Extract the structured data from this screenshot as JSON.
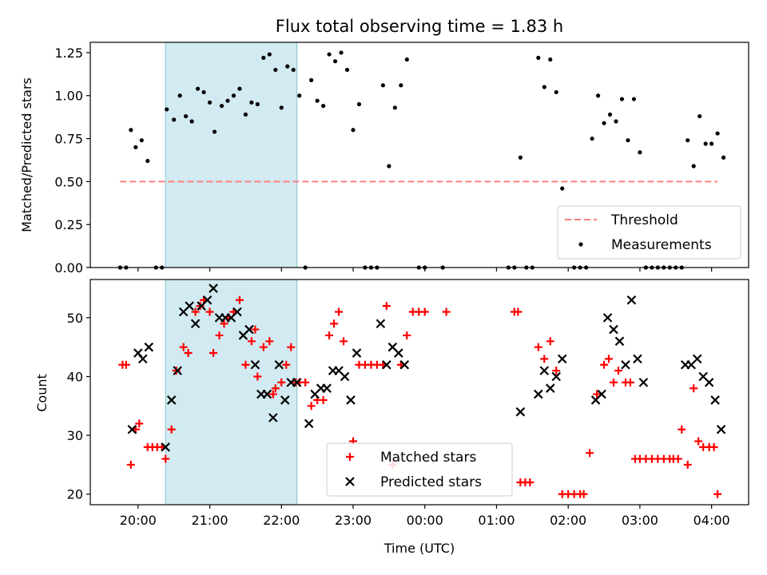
{
  "chart_data": [
    {
      "type": "scatter",
      "title": "Flux total observing time = 1.83 h",
      "xlabel": "",
      "ylabel": "Matched/Predicted stars",
      "ylim": [
        0,
        1.31
      ],
      "yticks": [
        0,
        0.25,
        0.5,
        0.75,
        1.0,
        1.25
      ],
      "ytick_labels": [
        "0.00",
        "0.25",
        "0.50",
        "0.75",
        "1.00",
        "1.25"
      ],
      "xticks": [
        "20:00",
        "21:00",
        "22:00",
        "23:00",
        "00:00",
        "01:00",
        "02:00",
        "03:00",
        "04:00"
      ],
      "xtick_labels_visible": false,
      "shaded_span": {
        "start": "20:23",
        "end": "22:13",
        "color": "#add8e6"
      },
      "threshold": {
        "name": "Threshold",
        "value": 0.5,
        "x_start": "19:45",
        "x_end": "04:05",
        "color": "#ff7f7f"
      },
      "legend": {
        "placement": "lower right",
        "entries": [
          "Threshold",
          "Measurements"
        ]
      },
      "series": [
        {
          "name": "Measurements",
          "color": "#000000",
          "points": [
            [
              "19:45",
              0.0
            ],
            [
              "19:50",
              0.0
            ],
            [
              "19:54",
              0.8
            ],
            [
              "19:58",
              0.7
            ],
            [
              "20:03",
              0.74
            ],
            [
              "20:08",
              0.62
            ],
            [
              "20:15",
              0.0
            ],
            [
              "20:20",
              0.0
            ],
            [
              "20:24",
              0.92
            ],
            [
              "20:30",
              0.86
            ],
            [
              "20:35",
              1.0
            ],
            [
              "20:40",
              0.88
            ],
            [
              "20:45",
              0.85
            ],
            [
              "20:50",
              1.04
            ],
            [
              "20:55",
              1.02
            ],
            [
              "21:00",
              0.96
            ],
            [
              "21:04",
              0.79
            ],
            [
              "21:10",
              0.94
            ],
            [
              "21:15",
              0.97
            ],
            [
              "21:20",
              1.0
            ],
            [
              "21:25",
              1.04
            ],
            [
              "21:30",
              0.89
            ],
            [
              "21:35",
              0.96
            ],
            [
              "21:40",
              0.95
            ],
            [
              "21:45",
              1.22
            ],
            [
              "21:50",
              1.24
            ],
            [
              "21:55",
              1.15
            ],
            [
              "22:00",
              0.93
            ],
            [
              "22:05",
              1.17
            ],
            [
              "22:10",
              1.15
            ],
            [
              "22:15",
              1.0
            ],
            [
              "22:20",
              0.0
            ],
            [
              "22:25",
              1.09
            ],
            [
              "22:30",
              0.97
            ],
            [
              "22:35",
              0.94
            ],
            [
              "22:40",
              1.24
            ],
            [
              "22:45",
              1.2
            ],
            [
              "22:50",
              1.25
            ],
            [
              "22:55",
              1.15
            ],
            [
              "23:00",
              0.8
            ],
            [
              "23:05",
              0.95
            ],
            [
              "23:10",
              0.0
            ],
            [
              "23:15",
              0.0
            ],
            [
              "23:20",
              0.0
            ],
            [
              "23:25",
              1.06
            ],
            [
              "23:30",
              0.59
            ],
            [
              "23:35",
              0.93
            ],
            [
              "23:40",
              1.06
            ],
            [
              "23:45",
              1.21
            ],
            [
              "23:55",
              0.0
            ],
            [
              "00:00",
              0.0
            ],
            [
              "00:15",
              0.0
            ],
            [
              "01:10",
              0.0
            ],
            [
              "01:15",
              0.0
            ],
            [
              "01:20",
              0.64
            ],
            [
              "01:25",
              0.0
            ],
            [
              "01:30",
              0.0
            ],
            [
              "01:35",
              1.22
            ],
            [
              "01:40",
              1.05
            ],
            [
              "01:45",
              1.21
            ],
            [
              "01:50",
              1.02
            ],
            [
              "01:55",
              0.46
            ],
            [
              "02:05",
              0.0
            ],
            [
              "02:10",
              0.0
            ],
            [
              "02:15",
              0.0
            ],
            [
              "02:20",
              0.75
            ],
            [
              "02:25",
              1.0
            ],
            [
              "02:30",
              0.84
            ],
            [
              "02:35",
              0.89
            ],
            [
              "02:40",
              0.85
            ],
            [
              "02:45",
              0.98
            ],
            [
              "02:50",
              0.74
            ],
            [
              "02:55",
              0.98
            ],
            [
              "03:00",
              0.67
            ],
            [
              "03:05",
              0.0
            ],
            [
              "03:10",
              0.0
            ],
            [
              "03:15",
              0.0
            ],
            [
              "03:20",
              0.0
            ],
            [
              "03:25",
              0.0
            ],
            [
              "03:30",
              0.0
            ],
            [
              "03:35",
              0.0
            ],
            [
              "03:40",
              0.74
            ],
            [
              "03:45",
              0.59
            ],
            [
              "03:50",
              0.88
            ],
            [
              "03:55",
              0.72
            ],
            [
              "04:00",
              0.72
            ],
            [
              "04:05",
              0.78
            ],
            [
              "04:10",
              0.64
            ]
          ]
        }
      ]
    },
    {
      "type": "scatter",
      "title": "",
      "xlabel": "Time (UTC)",
      "ylabel": "Count",
      "ylim": [
        18.2,
        56.5
      ],
      "yticks": [
        20,
        30,
        40,
        50
      ],
      "ytick_labels": [
        "20",
        "30",
        "40",
        "50"
      ],
      "xticks": [
        "20:00",
        "21:00",
        "22:00",
        "23:00",
        "00:00",
        "01:00",
        "02:00",
        "03:00",
        "04:00"
      ],
      "xtick_labels": [
        "20:00",
        "21:00",
        "22:00",
        "23:00",
        "00:00",
        "01:00",
        "02:00",
        "03:00",
        "04:00"
      ],
      "shaded_span": {
        "start": "20:23",
        "end": "22:13",
        "color": "#add8e6"
      },
      "legend": {
        "placement": "lower center",
        "entries": [
          "Matched stars",
          "Predicted stars"
        ]
      },
      "series": [
        {
          "name": "Matched stars",
          "marker": "+",
          "color": "#ff0000",
          "points": [
            [
              "19:47",
              42
            ],
            [
              "19:50",
              42
            ],
            [
              "19:54",
              25
            ],
            [
              "19:58",
              31
            ],
            [
              "20:01",
              32
            ],
            [
              "20:08",
              28
            ],
            [
              "20:12",
              28
            ],
            [
              "20:16",
              28
            ],
            [
              "20:20",
              28
            ],
            [
              "20:23",
              26
            ],
            [
              "20:28",
              31
            ],
            [
              "20:32",
              41
            ],
            [
              "20:38",
              45
            ],
            [
              "20:42",
              44
            ],
            [
              "20:48",
              51
            ],
            [
              "20:52",
              52
            ],
            [
              "20:55",
              53
            ],
            [
              "21:00",
              51
            ],
            [
              "21:03",
              44
            ],
            [
              "21:08",
              47
            ],
            [
              "21:12",
              49
            ],
            [
              "21:15",
              50
            ],
            [
              "21:20",
              51
            ],
            [
              "21:25",
              53
            ],
            [
              "21:30",
              42
            ],
            [
              "21:35",
              46
            ],
            [
              "21:38",
              48
            ],
            [
              "21:40",
              40
            ],
            [
              "21:45",
              45
            ],
            [
              "21:50",
              46
            ],
            [
              "21:53",
              37
            ],
            [
              "21:55",
              38
            ],
            [
              "22:00",
              39
            ],
            [
              "22:04",
              42
            ],
            [
              "22:08",
              45
            ],
            [
              "22:12",
              39
            ],
            [
              "22:15",
              39
            ],
            [
              "22:20",
              39
            ],
            [
              "22:25",
              35
            ],
            [
              "22:30",
              36
            ],
            [
              "22:35",
              36
            ],
            [
              "22:40",
              47
            ],
            [
              "22:44",
              49
            ],
            [
              "22:48",
              51
            ],
            [
              "22:52",
              46
            ],
            [
              "23:00",
              29
            ],
            [
              "23:05",
              42
            ],
            [
              "23:10",
              42
            ],
            [
              "23:15",
              42
            ],
            [
              "23:20",
              42
            ],
            [
              "23:25",
              42
            ],
            [
              "23:28",
              52
            ],
            [
              "23:33",
              25
            ],
            [
              "23:40",
              42
            ],
            [
              "23:45",
              47
            ],
            [
              "23:50",
              51
            ],
            [
              "23:55",
              51
            ],
            [
              "00:00",
              51
            ],
            [
              "00:18",
              51
            ],
            [
              "01:15",
              51
            ],
            [
              "01:18",
              51
            ],
            [
              "01:20",
              22
            ],
            [
              "01:24",
              22
            ],
            [
              "01:28",
              22
            ],
            [
              "01:35",
              45
            ],
            [
              "01:40",
              43
            ],
            [
              "01:45",
              46
            ],
            [
              "01:50",
              41
            ],
            [
              "01:55",
              20
            ],
            [
              "02:00",
              20
            ],
            [
              "02:05",
              20
            ],
            [
              "02:10",
              20
            ],
            [
              "02:13",
              20
            ],
            [
              "02:18",
              27
            ],
            [
              "02:24",
              37
            ],
            [
              "02:30",
              42
            ],
            [
              "02:34",
              43
            ],
            [
              "02:38",
              39
            ],
            [
              "02:42",
              41
            ],
            [
              "02:48",
              39
            ],
            [
              "02:52",
              39
            ],
            [
              "02:56",
              26
            ],
            [
              "03:00",
              26
            ],
            [
              "03:05",
              26
            ],
            [
              "03:10",
              26
            ],
            [
              "03:15",
              26
            ],
            [
              "03:20",
              26
            ],
            [
              "03:25",
              26
            ],
            [
              "03:28",
              26
            ],
            [
              "03:32",
              26
            ],
            [
              "03:35",
              31
            ],
            [
              "03:40",
              25
            ],
            [
              "03:45",
              38
            ],
            [
              "03:49",
              29
            ],
            [
              "03:53",
              28
            ],
            [
              "03:58",
              28
            ],
            [
              "04:02",
              28
            ],
            [
              "04:05",
              20
            ]
          ]
        },
        {
          "name": "Predicted stars",
          "marker": "x",
          "color": "#000000",
          "points": [
            [
              "19:55",
              31
            ],
            [
              "20:00",
              44
            ],
            [
              "20:04",
              43
            ],
            [
              "20:09",
              45
            ],
            [
              "20:23",
              28
            ],
            [
              "20:28",
              36
            ],
            [
              "20:33",
              41
            ],
            [
              "20:38",
              51
            ],
            [
              "20:43",
              52
            ],
            [
              "20:48",
              49
            ],
            [
              "20:53",
              52
            ],
            [
              "20:58",
              53
            ],
            [
              "21:03",
              55
            ],
            [
              "21:08",
              50
            ],
            [
              "21:13",
              50
            ],
            [
              "21:18",
              50
            ],
            [
              "21:23",
              51
            ],
            [
              "21:28",
              47
            ],
            [
              "21:33",
              48
            ],
            [
              "21:38",
              42
            ],
            [
              "21:43",
              37
            ],
            [
              "21:48",
              37
            ],
            [
              "21:53",
              33
            ],
            [
              "21:58",
              42
            ],
            [
              "22:03",
              36
            ],
            [
              "22:08",
              39
            ],
            [
              "22:13",
              39
            ],
            [
              "22:23",
              32
            ],
            [
              "22:28",
              37
            ],
            [
              "22:33",
              38
            ],
            [
              "22:38",
              38
            ],
            [
              "22:43",
              41
            ],
            [
              "22:48",
              41
            ],
            [
              "22:53",
              40
            ],
            [
              "22:58",
              36
            ],
            [
              "23:03",
              44
            ],
            [
              "23:23",
              49
            ],
            [
              "23:28",
              42
            ],
            [
              "23:33",
              45
            ],
            [
              "23:38",
              44
            ],
            [
              "23:43",
              42
            ],
            [
              "01:20",
              34
            ],
            [
              "01:35",
              37
            ],
            [
              "01:40",
              41
            ],
            [
              "01:45",
              38
            ],
            [
              "01:50",
              40
            ],
            [
              "01:55",
              43
            ],
            [
              "02:23",
              36
            ],
            [
              "02:28",
              37
            ],
            [
              "02:33",
              50
            ],
            [
              "02:38",
              48
            ],
            [
              "02:43",
              46
            ],
            [
              "02:48",
              42
            ],
            [
              "02:53",
              53
            ],
            [
              "02:58",
              43
            ],
            [
              "03:03",
              39
            ],
            [
              "03:38",
              42
            ],
            [
              "03:43",
              42
            ],
            [
              "03:48",
              43
            ],
            [
              "03:53",
              40
            ],
            [
              "03:58",
              39
            ],
            [
              "04:03",
              36
            ],
            [
              "04:08",
              31
            ]
          ]
        }
      ]
    }
  ]
}
